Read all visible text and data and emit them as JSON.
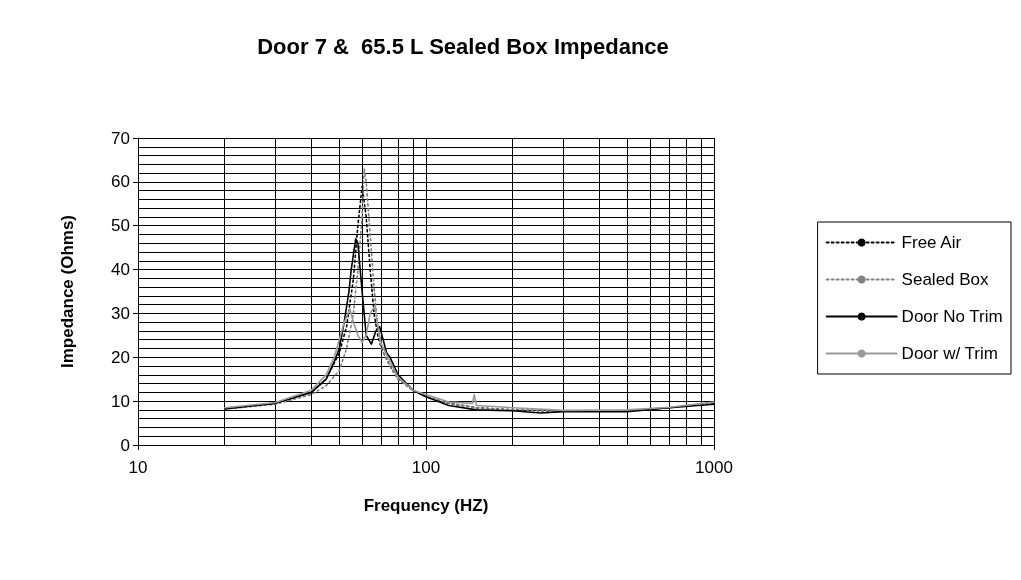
{
  "chart_data": {
    "type": "line",
    "title": "Door 7 &  65.5 L Sealed Box Impedance",
    "xlabel": "Frequency (HZ)",
    "ylabel": "Impedance (Ohms)",
    "log": "x",
    "xlim": [
      10,
      1000
    ],
    "xticks": [
      10,
      100,
      1000
    ],
    "ylim": [
      0,
      70
    ],
    "yticks": [
      0,
      10,
      20,
      30,
      40,
      50,
      60,
      70
    ],
    "grid": true,
    "legend": "right",
    "marker": "none",
    "series": [
      {
        "name": "Free Air",
        "color": "#000000",
        "line_style": "dotted",
        "x": [
          20,
          30,
          40,
          45,
          50,
          53,
          56,
          58,
          60,
          62,
          64,
          66,
          68,
          70,
          75,
          80,
          90,
          100,
          120,
          150,
          200,
          300,
          500,
          700,
          1000
        ],
        "values": [
          8.3,
          9.5,
          12,
          15,
          21,
          27,
          38,
          50,
          59,
          52,
          40,
          30,
          25,
          22,
          18,
          15,
          12.5,
          11,
          9.5,
          8.5,
          8,
          7.7,
          7.8,
          8.5,
          9.6
        ]
      },
      {
        "name": "Sealed Box",
        "color": "#808080",
        "line_style": "dotted",
        "x": [
          20,
          30,
          40,
          45,
          50,
          53,
          56,
          58,
          60,
          61,
          62,
          64,
          66,
          68,
          70,
          75,
          80,
          90,
          100,
          120,
          150,
          200,
          300,
          500,
          700,
          1000
        ],
        "values": [
          8.2,
          9.3,
          11.5,
          13.5,
          17,
          22,
          30,
          40,
          52,
          63,
          60,
          48,
          36,
          27,
          22,
          18,
          15,
          12.5,
          11,
          9.5,
          8.5,
          8,
          7.8,
          7.8,
          8.5,
          9.7
        ]
      },
      {
        "name": "Door No Trim",
        "color": "#000000",
        "line_style": "solid",
        "x": [
          20,
          30,
          40,
          45,
          48,
          50,
          52,
          54,
          55,
          57,
          58,
          60,
          62,
          64.6,
          67,
          69,
          71,
          73,
          75,
          80,
          90,
          100,
          120,
          150,
          200,
          250,
          300,
          500,
          700,
          1000
        ],
        "values": [
          8.2,
          9.5,
          12,
          15,
          19,
          22,
          28,
          35,
          40,
          47,
          46,
          35,
          25,
          23,
          26,
          27,
          24,
          21,
          20,
          16,
          12.5,
          11,
          9,
          8,
          7.8,
          7.3,
          7.6,
          7.6,
          8.5,
          9.3
        ]
      },
      {
        "name": "Door w/ Trim",
        "color": "#999999",
        "line_style": "solid",
        "x": [
          20,
          30,
          40,
          45,
          48,
          50,
          52,
          54.4,
          56,
          58,
          60,
          62,
          64,
          66.5,
          68,
          70,
          75,
          80,
          90,
          100,
          120,
          145,
          147,
          150,
          200,
          300,
          500,
          700,
          1000
        ],
        "values": [
          8.5,
          9.7,
          12.5,
          16,
          20,
          24,
          28,
          31,
          28,
          25,
          23.4,
          25,
          30,
          31.7,
          27,
          23,
          19,
          15.5,
          12.5,
          11.5,
          9.8,
          9.5,
          11.5,
          9,
          8.5,
          7.9,
          8,
          8.6,
          9.8
        ]
      }
    ]
  }
}
